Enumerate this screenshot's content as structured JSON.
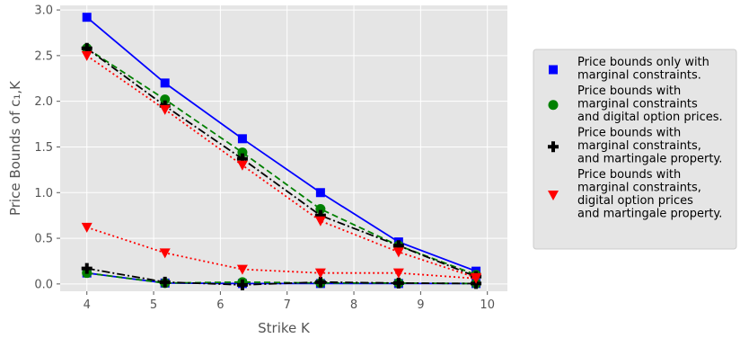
{
  "chart_data": {
    "type": "line",
    "xlabel": "Strike K",
    "ylabel": "Price Bounds of c₁,K",
    "xlim": [
      3.6,
      10.3
    ],
    "ylim": [
      -0.08,
      3.05
    ],
    "xticks": [
      4,
      5,
      6,
      7,
      8,
      9,
      10
    ],
    "yticks": [
      0.0,
      0.5,
      1.0,
      1.5,
      2.0,
      2.5,
      3.0
    ],
    "ytick_labels": [
      "0.0",
      "0.5",
      "1.0",
      "1.5",
      "2.0",
      "2.5",
      "3.0"
    ],
    "grid": true,
    "legend_position": "right-outside",
    "x": [
      4.0,
      5.17,
      6.33,
      7.5,
      8.67,
      9.83
    ],
    "series": [
      {
        "name": "Price bounds only with marginal constraints.",
        "legend_lines": [
          "Price bounds only with",
          "marginal constraints."
        ],
        "color": "#0000ff",
        "marker": "square",
        "linestyle": "solid",
        "upper": [
          2.92,
          2.2,
          1.59,
          1.0,
          0.46,
          0.14
        ],
        "lower": [
          0.12,
          0.01,
          0.005,
          0.005,
          0.005,
          0.005
        ]
      },
      {
        "name": "Price bounds with marginal constraints and digital option prices.",
        "legend_lines": [
          "Price bounds with",
          "marginal constraints",
          "and digital option prices."
        ],
        "color": "#008000",
        "marker": "circle",
        "linestyle": "dashed",
        "upper": [
          2.58,
          2.02,
          1.44,
          0.82,
          0.42,
          0.1
        ],
        "lower": [
          0.12,
          0.01,
          0.02,
          0.01,
          0.01,
          0.005
        ]
      },
      {
        "name": "Price bounds with marginal constraints, and martingale property.",
        "legend_lines": [
          "Price bounds with",
          "marginal constraints,",
          "and martingale property."
        ],
        "color": "#000000",
        "marker": "plus",
        "linestyle": "dashdot",
        "upper": [
          2.58,
          1.95,
          1.37,
          0.75,
          0.42,
          0.08
        ],
        "lower": [
          0.17,
          0.02,
          -0.01,
          0.02,
          0.01,
          0.005
        ]
      },
      {
        "name": "Price bounds with marginal constraints, digital option prices and martingale property.",
        "legend_lines": [
          "Price bounds with",
          "marginal constraints,",
          "digital option prices",
          "and martingale property."
        ],
        "color": "#ff0000",
        "marker": "triangle-down",
        "linestyle": "dotted",
        "upper": [
          2.5,
          1.91,
          1.3,
          0.69,
          0.35,
          0.07
        ],
        "lower": [
          0.62,
          0.34,
          0.16,
          0.12,
          0.12,
          0.06
        ]
      }
    ]
  }
}
